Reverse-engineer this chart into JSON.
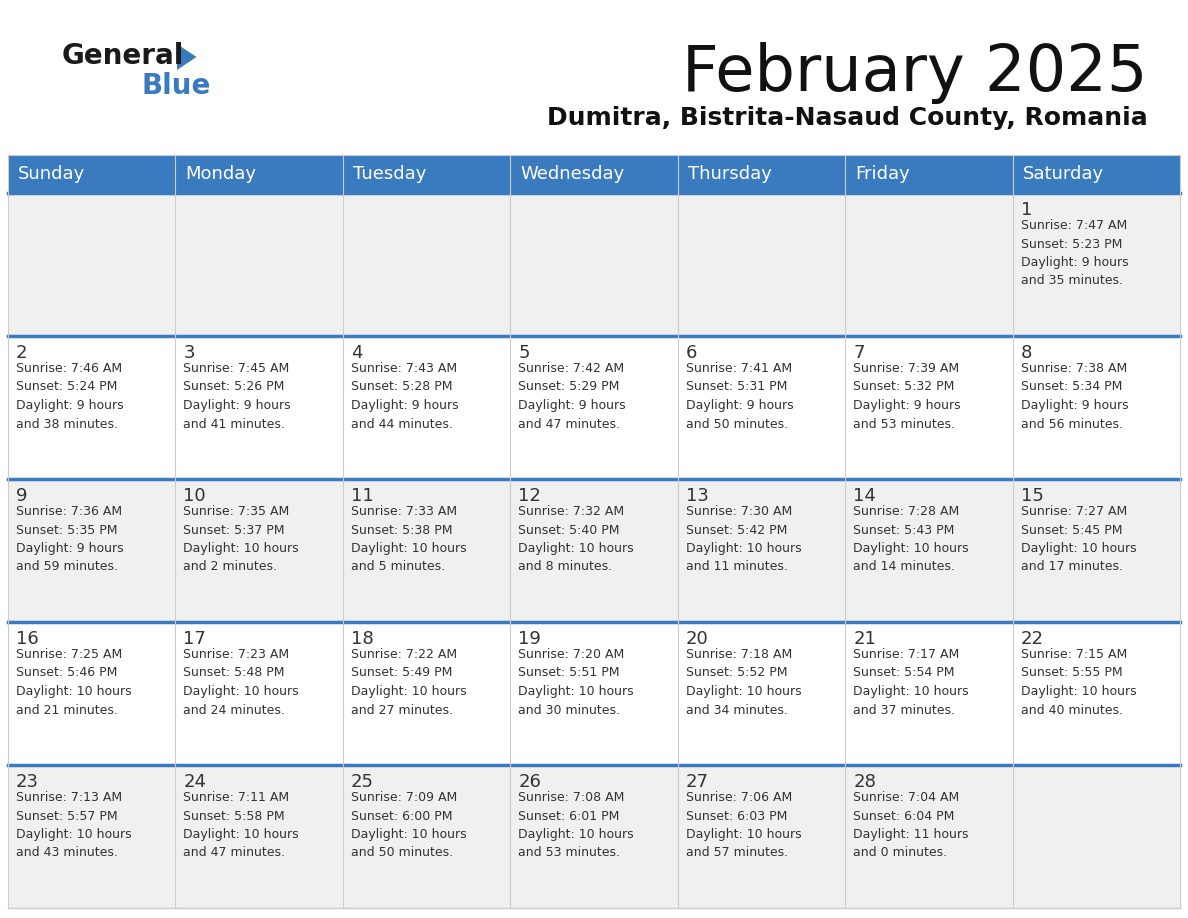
{
  "title": "February 2025",
  "subtitle": "Dumitra, Bistrita-Nasaud County, Romania",
  "header_bg_color": "#3a7bbf",
  "header_text_color": "#ffffff",
  "cell_bg_even": "#f0f0f0",
  "cell_bg_odd": "#ffffff",
  "border_color": "#cccccc",
  "day_headers": [
    "Sunday",
    "Monday",
    "Tuesday",
    "Wednesday",
    "Thursday",
    "Friday",
    "Saturday"
  ],
  "weeks": [
    [
      {
        "day": null,
        "info": null
      },
      {
        "day": null,
        "info": null
      },
      {
        "day": null,
        "info": null
      },
      {
        "day": null,
        "info": null
      },
      {
        "day": null,
        "info": null
      },
      {
        "day": null,
        "info": null
      },
      {
        "day": 1,
        "info": "Sunrise: 7:47 AM\nSunset: 5:23 PM\nDaylight: 9 hours\nand 35 minutes."
      }
    ],
    [
      {
        "day": 2,
        "info": "Sunrise: 7:46 AM\nSunset: 5:24 PM\nDaylight: 9 hours\nand 38 minutes."
      },
      {
        "day": 3,
        "info": "Sunrise: 7:45 AM\nSunset: 5:26 PM\nDaylight: 9 hours\nand 41 minutes."
      },
      {
        "day": 4,
        "info": "Sunrise: 7:43 AM\nSunset: 5:28 PM\nDaylight: 9 hours\nand 44 minutes."
      },
      {
        "day": 5,
        "info": "Sunrise: 7:42 AM\nSunset: 5:29 PM\nDaylight: 9 hours\nand 47 minutes."
      },
      {
        "day": 6,
        "info": "Sunrise: 7:41 AM\nSunset: 5:31 PM\nDaylight: 9 hours\nand 50 minutes."
      },
      {
        "day": 7,
        "info": "Sunrise: 7:39 AM\nSunset: 5:32 PM\nDaylight: 9 hours\nand 53 minutes."
      },
      {
        "day": 8,
        "info": "Sunrise: 7:38 AM\nSunset: 5:34 PM\nDaylight: 9 hours\nand 56 minutes."
      }
    ],
    [
      {
        "day": 9,
        "info": "Sunrise: 7:36 AM\nSunset: 5:35 PM\nDaylight: 9 hours\nand 59 minutes."
      },
      {
        "day": 10,
        "info": "Sunrise: 7:35 AM\nSunset: 5:37 PM\nDaylight: 10 hours\nand 2 minutes."
      },
      {
        "day": 11,
        "info": "Sunrise: 7:33 AM\nSunset: 5:38 PM\nDaylight: 10 hours\nand 5 minutes."
      },
      {
        "day": 12,
        "info": "Sunrise: 7:32 AM\nSunset: 5:40 PM\nDaylight: 10 hours\nand 8 minutes."
      },
      {
        "day": 13,
        "info": "Sunrise: 7:30 AM\nSunset: 5:42 PM\nDaylight: 10 hours\nand 11 minutes."
      },
      {
        "day": 14,
        "info": "Sunrise: 7:28 AM\nSunset: 5:43 PM\nDaylight: 10 hours\nand 14 minutes."
      },
      {
        "day": 15,
        "info": "Sunrise: 7:27 AM\nSunset: 5:45 PM\nDaylight: 10 hours\nand 17 minutes."
      }
    ],
    [
      {
        "day": 16,
        "info": "Sunrise: 7:25 AM\nSunset: 5:46 PM\nDaylight: 10 hours\nand 21 minutes."
      },
      {
        "day": 17,
        "info": "Sunrise: 7:23 AM\nSunset: 5:48 PM\nDaylight: 10 hours\nand 24 minutes."
      },
      {
        "day": 18,
        "info": "Sunrise: 7:22 AM\nSunset: 5:49 PM\nDaylight: 10 hours\nand 27 minutes."
      },
      {
        "day": 19,
        "info": "Sunrise: 7:20 AM\nSunset: 5:51 PM\nDaylight: 10 hours\nand 30 minutes."
      },
      {
        "day": 20,
        "info": "Sunrise: 7:18 AM\nSunset: 5:52 PM\nDaylight: 10 hours\nand 34 minutes."
      },
      {
        "day": 21,
        "info": "Sunrise: 7:17 AM\nSunset: 5:54 PM\nDaylight: 10 hours\nand 37 minutes."
      },
      {
        "day": 22,
        "info": "Sunrise: 7:15 AM\nSunset: 5:55 PM\nDaylight: 10 hours\nand 40 minutes."
      }
    ],
    [
      {
        "day": 23,
        "info": "Sunrise: 7:13 AM\nSunset: 5:57 PM\nDaylight: 10 hours\nand 43 minutes."
      },
      {
        "day": 24,
        "info": "Sunrise: 7:11 AM\nSunset: 5:58 PM\nDaylight: 10 hours\nand 47 minutes."
      },
      {
        "day": 25,
        "info": "Sunrise: 7:09 AM\nSunset: 6:00 PM\nDaylight: 10 hours\nand 50 minutes."
      },
      {
        "day": 26,
        "info": "Sunrise: 7:08 AM\nSunset: 6:01 PM\nDaylight: 10 hours\nand 53 minutes."
      },
      {
        "day": 27,
        "info": "Sunrise: 7:06 AM\nSunset: 6:03 PM\nDaylight: 10 hours\nand 57 minutes."
      },
      {
        "day": 28,
        "info": "Sunrise: 7:04 AM\nSunset: 6:04 PM\nDaylight: 11 hours\nand 0 minutes."
      },
      {
        "day": null,
        "info": null
      }
    ]
  ],
  "logo_general_color": "#1a1a1a",
  "logo_blue_color": "#3a7bbf",
  "logo_triangle_color": "#3a7bbf"
}
